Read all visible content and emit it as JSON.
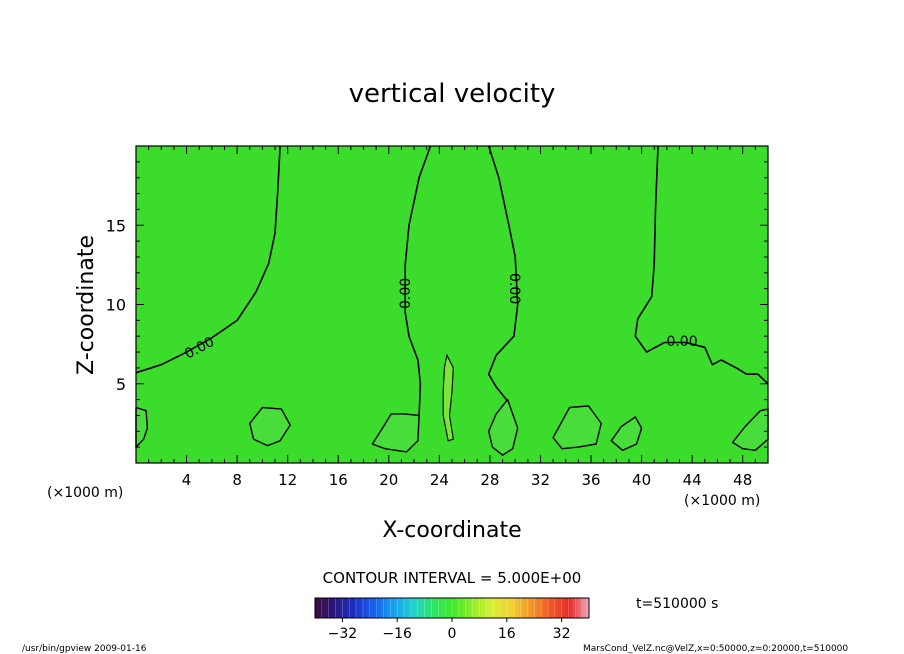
{
  "chart_data": {
    "type": "heatmap",
    "title": "vertical velocity",
    "xlabel": "X-coordinate",
    "ylabel": "Z-coordinate",
    "x_unit_left": "(×1000 m)",
    "x_unit_right": "(×1000 m)",
    "xlim": [
      0,
      50
    ],
    "ylim": [
      0,
      20
    ],
    "x_ticks": [
      4,
      8,
      12,
      16,
      20,
      24,
      28,
      32,
      36,
      40,
      44,
      48
    ],
    "y_ticks": [
      5,
      10,
      15
    ],
    "contour_interval_text": "CONTOUR INTERVAL = 5.000E+00",
    "contour_labels": [
      {
        "text": "0.00",
        "x": 5.0,
        "y": 7.3,
        "rotate": -28
      },
      {
        "text": "0.00",
        "x": 21.3,
        "y": 10.7,
        "rotate": -90
      },
      {
        "text": "0.00",
        "x": 30.0,
        "y": 11.0,
        "rotate": 90
      },
      {
        "text": "0.00",
        "x": 43.2,
        "y": 7.7,
        "rotate": 0
      }
    ],
    "zero_contours": [
      [
        [
          0,
          5.7
        ],
        [
          2,
          6.2
        ],
        [
          4,
          7.0
        ],
        [
          6,
          7.9
        ],
        [
          8,
          9.0
        ],
        [
          9.5,
          10.8
        ],
        [
          10.5,
          12.6
        ],
        [
          11.0,
          14.5
        ],
        [
          11.2,
          17
        ],
        [
          11.4,
          20
        ]
      ],
      [
        [
          23.3,
          20
        ],
        [
          22.4,
          18
        ],
        [
          21.6,
          15
        ],
        [
          21.3,
          12.5
        ],
        [
          21.3,
          9.5
        ],
        [
          21.6,
          8.0
        ],
        [
          22.3,
          6.5
        ],
        [
          22.5,
          5
        ],
        [
          22.4,
          3.0
        ]
      ],
      [
        [
          27.9,
          20
        ],
        [
          28.7,
          18
        ],
        [
          29.5,
          15
        ],
        [
          30.0,
          13
        ],
        [
          30.2,
          10
        ],
        [
          29.9,
          8.0
        ],
        [
          28.5,
          6.8
        ],
        [
          27.9,
          5.6
        ],
        [
          28.5,
          4.8
        ],
        [
          29.3,
          4.0
        ]
      ],
      [
        [
          41.3,
          20
        ],
        [
          41.1,
          16
        ],
        [
          41.0,
          12.5
        ],
        [
          40.8,
          10.5
        ],
        [
          39.7,
          9.1
        ],
        [
          39.5,
          8.0
        ],
        [
          40.4,
          7.0
        ],
        [
          41.8,
          7.6
        ],
        [
          43.5,
          7.6
        ],
        [
          45.0,
          7.3
        ],
        [
          45.6,
          6.2
        ],
        [
          46.3,
          6.5
        ],
        [
          47.5,
          6.0
        ],
        [
          48.3,
          5.6
        ],
        [
          49.2,
          5.6
        ],
        [
          50,
          5.0
        ]
      ]
    ],
    "near_zero_blobs": [
      [
        [
          0,
          3.5
        ],
        [
          0.8,
          3.3
        ],
        [
          0.9,
          2.2
        ],
        [
          0.6,
          1.5
        ],
        [
          0,
          1.0
        ]
      ],
      [
        [
          9,
          2.5
        ],
        [
          10,
          3.5
        ],
        [
          11.5,
          3.4
        ],
        [
          12.2,
          2.4
        ],
        [
          11.4,
          1.4
        ],
        [
          10.4,
          1.1
        ],
        [
          9.3,
          1.5
        ]
      ],
      [
        [
          18.7,
          1.2
        ],
        [
          19.5,
          2.2
        ],
        [
          20.2,
          3.1
        ],
        [
          21.2,
          3.1
        ],
        [
          22.4,
          3.0
        ],
        [
          22.3,
          1.4
        ],
        [
          21.4,
          0.7
        ],
        [
          19.7,
          0.9
        ]
      ],
      [
        [
          27.9,
          2.0
        ],
        [
          28.5,
          3.1
        ],
        [
          29.4,
          4.0
        ],
        [
          30.2,
          2.2
        ],
        [
          29.8,
          0.9
        ],
        [
          29.0,
          0.5
        ],
        [
          28.2,
          1.0
        ]
      ],
      [
        [
          33.0,
          1.6
        ],
        [
          34.3,
          3.5
        ],
        [
          35.8,
          3.6
        ],
        [
          36.8,
          2.5
        ],
        [
          36.4,
          1.2
        ],
        [
          35.0,
          1.0
        ],
        [
          33.7,
          0.9
        ]
      ],
      [
        [
          37.6,
          1.4
        ],
        [
          38.4,
          2.3
        ],
        [
          39.5,
          2.9
        ],
        [
          40.0,
          2.2
        ],
        [
          39.6,
          1.2
        ],
        [
          38.5,
          0.8
        ]
      ],
      [
        [
          47.2,
          1.3
        ],
        [
          48.2,
          2.3
        ],
        [
          49.4,
          3.3
        ],
        [
          50,
          3.4
        ],
        [
          50,
          1.5
        ],
        [
          49.0,
          0.8
        ],
        [
          48.0,
          0.9
        ]
      ]
    ],
    "positive_core": [
      [
        24.6,
        6.8
      ],
      [
        25.1,
        6.0
      ],
      [
        25.0,
        4.5
      ],
      [
        24.8,
        3.0
      ],
      [
        25.1,
        1.5
      ],
      [
        24.7,
        1.4
      ],
      [
        24.3,
        3.0
      ],
      [
        24.3,
        4.5
      ],
      [
        24.4,
        6.0
      ]
    ],
    "colorbar": {
      "ticks": [
        -32,
        -16,
        0,
        16,
        32
      ],
      "range": [
        -40,
        40
      ],
      "colors": [
        "#3b0a3a",
        "#2c1680",
        "#1b2fc4",
        "#1660ef",
        "#17a0f2",
        "#1fd0d0",
        "#2ce66a",
        "#3fe82c",
        "#8eed2a",
        "#d8f030",
        "#f0d234",
        "#f29a2a",
        "#ef5a26",
        "#e82c2a",
        "#f0a8bc"
      ]
    },
    "time_label": "t=510000 s",
    "footer_left": "/usr/bin/gpview   2009-01-16",
    "footer_right": "MarsCond_VelZ.nc@VelZ,x=0:50000,z=0:20000,t=510000"
  }
}
